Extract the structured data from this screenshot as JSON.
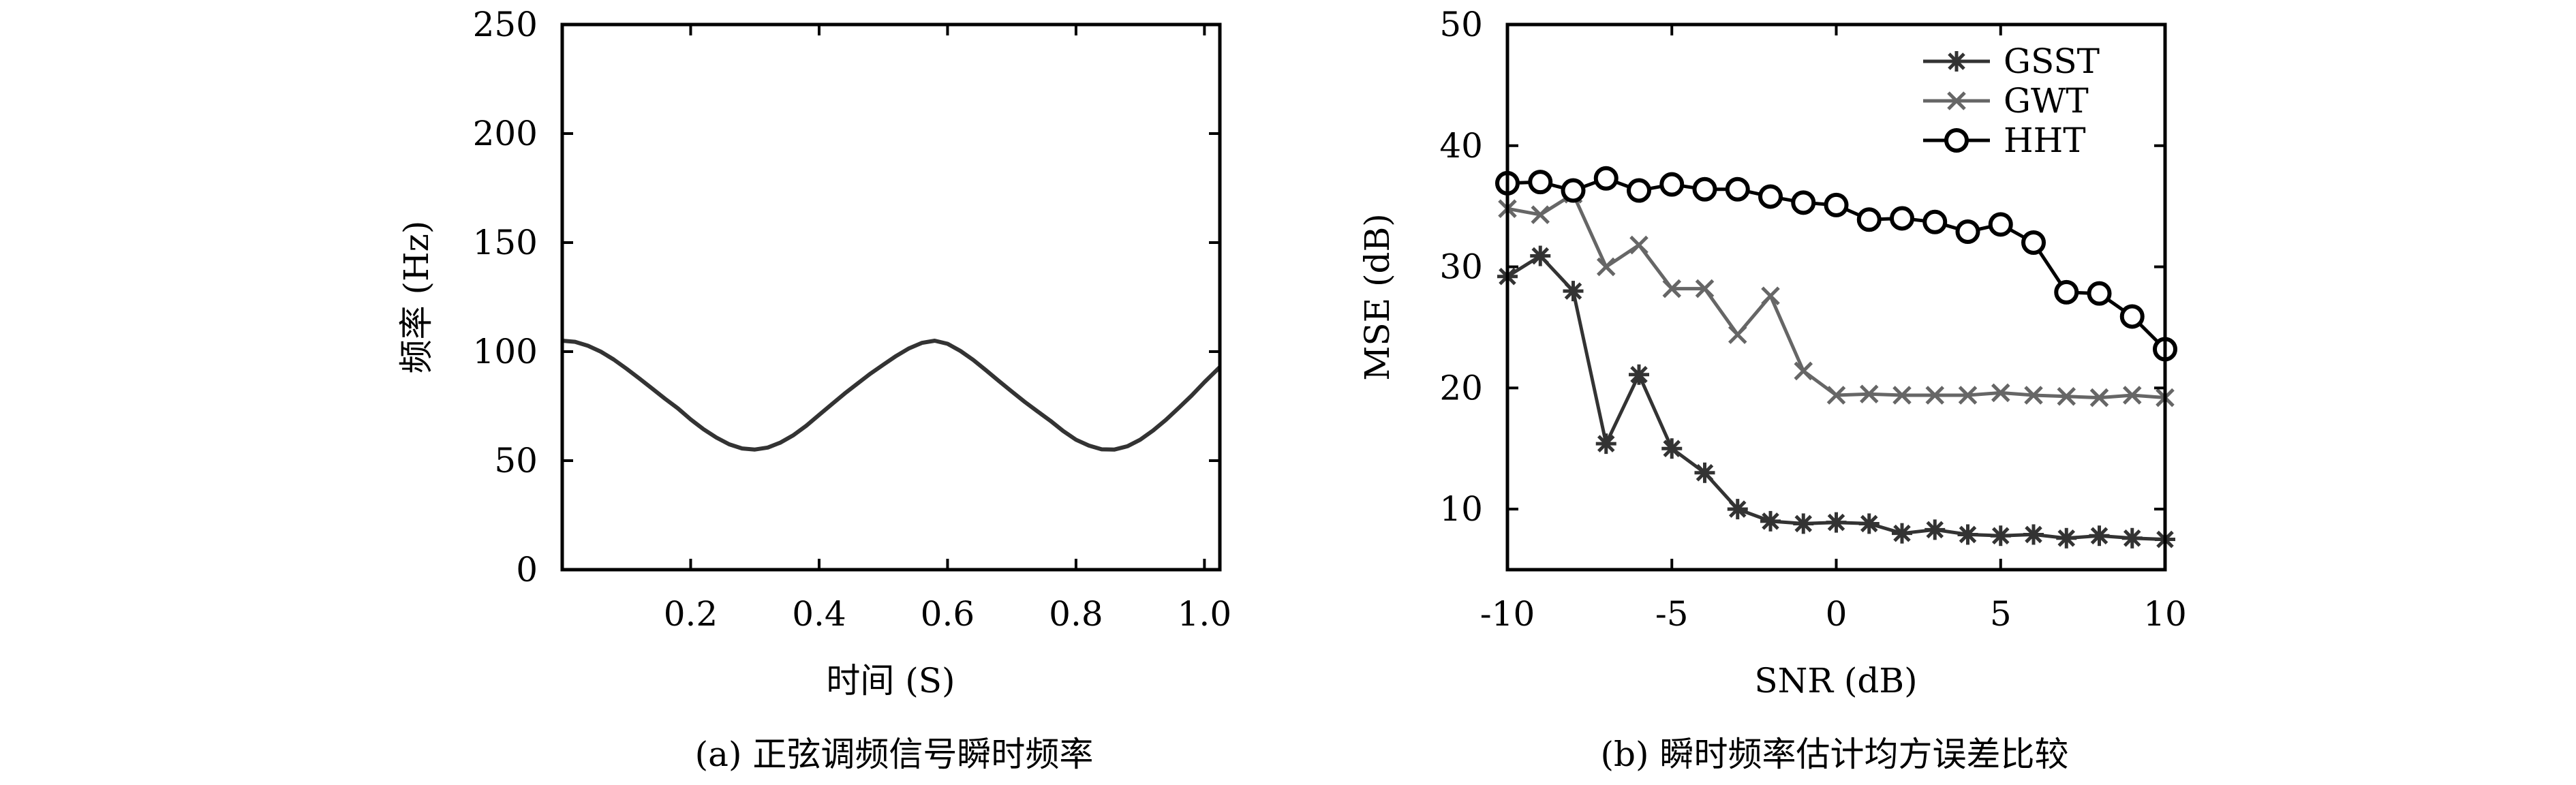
{
  "chart_data": [
    {
      "type": "line",
      "caption": "(a) 正弦调频信号瞬时频率",
      "xlabel": "时间 (S)",
      "ylabel": "频率 (Hz)",
      "xlim": [
        0,
        1.024
      ],
      "ylim": [
        0,
        250
      ],
      "xticks": [
        0.2,
        0.4,
        0.6,
        0.8,
        1.0
      ],
      "xtick_labels": [
        "0.2",
        "0.4",
        "0.6",
        "0.8",
        "1.0"
      ],
      "yticks": [
        0,
        50,
        100,
        150,
        200,
        250
      ],
      "ytick_labels": [
        "0",
        "50",
        "100",
        "150",
        "200",
        "250"
      ],
      "grid": false,
      "series": [
        {
          "color": "#333333",
          "x": [
            0,
            0.02,
            0.04,
            0.06,
            0.08,
            0.1,
            0.12,
            0.14,
            0.16,
            0.18,
            0.2,
            0.22,
            0.24,
            0.26,
            0.28,
            0.3,
            0.32,
            0.34,
            0.36,
            0.38,
            0.4,
            0.42,
            0.44,
            0.46,
            0.48,
            0.5,
            0.52,
            0.54,
            0.56,
            0.58,
            0.6,
            0.62,
            0.64,
            0.66,
            0.68,
            0.7,
            0.72,
            0.74,
            0.76,
            0.78,
            0.8,
            0.82,
            0.84,
            0.86,
            0.88,
            0.9,
            0.92,
            0.94,
            0.96,
            0.98,
            1.0,
            1.024
          ],
          "y": [
            105.0,
            104.5,
            102.7,
            100.0,
            96.4,
            92.2,
            87.7,
            83.1,
            78.4,
            74.0,
            68.9,
            64.4,
            60.6,
            57.5,
            55.6,
            55.1,
            56.0,
            58.3,
            61.7,
            66.0,
            71.0,
            75.9,
            80.8,
            85.4,
            89.9,
            94.0,
            98.0,
            101.5,
            104.0,
            105.0,
            103.6,
            100.3,
            96.2,
            91.4,
            86.5,
            81.7,
            77.0,
            72.6,
            68.3,
            63.6,
            59.6,
            56.9,
            55.2,
            55.1,
            56.6,
            59.6,
            63.8,
            68.7,
            74.2,
            79.8,
            86.0,
            92.9
          ]
        }
      ]
    },
    {
      "type": "line",
      "caption": "(b) 瞬时频率估计均方误差比较",
      "xlabel": "SNR (dB)",
      "ylabel": "MSE (dB)",
      "xlim": [
        -10,
        10
      ],
      "ylim": [
        5,
        50
      ],
      "xticks": [
        -10,
        -5,
        0,
        5,
        10
      ],
      "xtick_labels": [
        "-10",
        "-5",
        "0",
        "5",
        "10"
      ],
      "yticks": [
        10,
        20,
        30,
        40,
        50
      ],
      "ytick_labels": [
        "10",
        "20",
        "30",
        "40",
        "50"
      ],
      "grid": false,
      "legend": "top-right",
      "x": [
        -10,
        -9,
        -8,
        -7,
        -6,
        -5,
        -4,
        -3,
        -2,
        -1,
        0,
        1,
        2,
        3,
        4,
        5,
        6,
        7,
        8,
        9,
        10
      ],
      "series": [
        {
          "name": "GSST",
          "marker": "asterisk",
          "color": "#333333",
          "values": [
            29.2,
            30.9,
            28.0,
            15.4,
            21.1,
            15.0,
            13.0,
            10.0,
            9.0,
            8.8,
            8.9,
            8.8,
            8.0,
            8.3,
            7.9,
            7.8,
            7.9,
            7.6,
            7.8,
            7.6,
            7.5
          ]
        },
        {
          "name": "GWT",
          "marker": "cross",
          "color": "#666666",
          "values": [
            34.8,
            34.3,
            36.0,
            30.0,
            31.8,
            28.2,
            28.2,
            24.4,
            27.6,
            21.4,
            19.4,
            19.5,
            19.4,
            19.4,
            19.4,
            19.6,
            19.4,
            19.3,
            19.2,
            19.4,
            19.2
          ]
        },
        {
          "name": "HHT",
          "marker": "circle",
          "color": "#000000",
          "values": [
            36.9,
            37.0,
            36.3,
            37.3,
            36.3,
            36.8,
            36.4,
            36.4,
            35.8,
            35.3,
            35.1,
            33.9,
            34.0,
            33.7,
            32.9,
            33.5,
            32.0,
            27.9,
            27.8,
            25.9,
            23.2
          ]
        }
      ]
    }
  ]
}
